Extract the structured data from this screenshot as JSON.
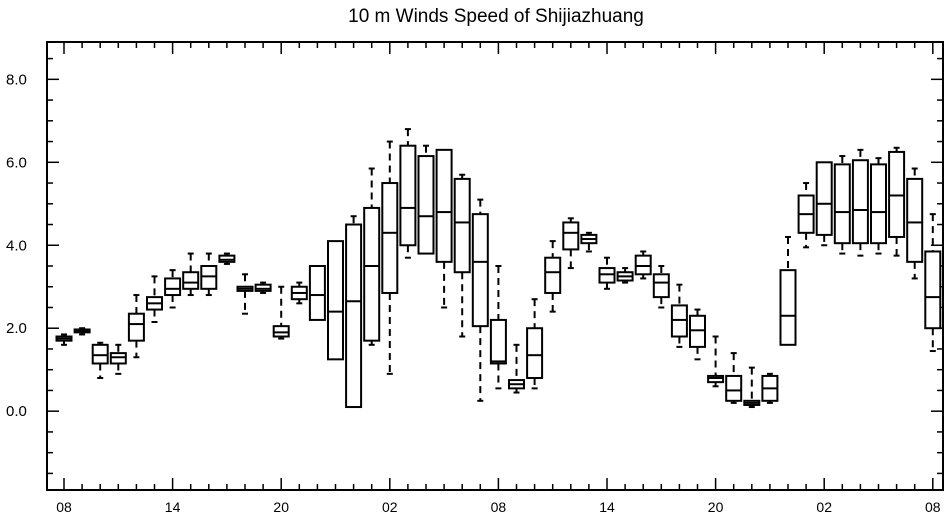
{
  "chart_data": {
    "type": "box",
    "title": "10 m Winds Speed of Shijiazhuang",
    "xlabel": "",
    "ylabel": "",
    "ylim": [
      -1.9,
      8.9
    ],
    "yticks_major": [
      0.0,
      2.0,
      4.0,
      6.0,
      8.0
    ],
    "ytick_labels": [
      "0.0",
      "2.0",
      "4.0",
      "6.0",
      "8.0"
    ],
    "yticks_minor_step": 0.5,
    "x_tick_labels": [
      "08",
      "14",
      "20",
      "02",
      "08",
      "14",
      "20",
      "02",
      "08"
    ],
    "x_tick_positions": [
      0,
      6,
      12,
      18,
      24,
      30,
      36,
      42,
      48
    ],
    "grid": false,
    "boxes": [
      {
        "x": 0,
        "whisker_low": 1.6,
        "q1": 1.7,
        "median": 1.75,
        "q3": 1.8,
        "whisker_high": 1.85
      },
      {
        "x": 1,
        "whisker_low": 1.85,
        "q1": 1.9,
        "median": 1.93,
        "q3": 1.97,
        "whisker_high": 2.0
      },
      {
        "x": 2,
        "whisker_low": 0.8,
        "q1": 1.15,
        "median": 1.35,
        "q3": 1.6,
        "whisker_high": 1.65
      },
      {
        "x": 3,
        "whisker_low": 0.9,
        "q1": 1.15,
        "median": 1.3,
        "q3": 1.4,
        "whisker_high": 1.6
      },
      {
        "x": 4,
        "whisker_low": 1.3,
        "q1": 1.7,
        "median": 2.1,
        "q3": 2.35,
        "whisker_high": 2.8
      },
      {
        "x": 5,
        "whisker_low": 2.15,
        "q1": 2.45,
        "median": 2.6,
        "q3": 2.75,
        "whisker_high": 3.25
      },
      {
        "x": 6,
        "whisker_low": 2.5,
        "q1": 2.8,
        "median": 2.95,
        "q3": 3.2,
        "whisker_high": 3.4
      },
      {
        "x": 7,
        "whisker_low": 2.8,
        "q1": 2.95,
        "median": 3.1,
        "q3": 3.35,
        "whisker_high": 3.8
      },
      {
        "x": 8,
        "whisker_low": 2.8,
        "q1": 2.95,
        "median": 3.25,
        "q3": 3.5,
        "whisker_high": 3.8
      },
      {
        "x": 9,
        "whisker_low": 3.55,
        "q1": 3.6,
        "median": 3.65,
        "q3": 3.75,
        "whisker_high": 3.8
      },
      {
        "x": 10,
        "whisker_low": 2.35,
        "q1": 2.9,
        "median": 2.95,
        "q3": 3.0,
        "whisker_high": 3.3
      },
      {
        "x": 11,
        "whisker_low": 2.85,
        "q1": 2.9,
        "median": 2.95,
        "q3": 3.05,
        "whisker_high": 3.1
      },
      {
        "x": 12,
        "whisker_low": 1.75,
        "q1": 1.8,
        "median": 1.9,
        "q3": 2.05,
        "whisker_high": 3.0
      },
      {
        "x": 13,
        "whisker_low": 2.6,
        "q1": 2.7,
        "median": 2.85,
        "q3": 3.0,
        "whisker_high": 3.1
      },
      {
        "x": 14,
        "whisker_low": 2.2,
        "q1": 2.2,
        "median": 2.8,
        "q3": 3.5,
        "whisker_high": 3.5
      },
      {
        "x": 15,
        "whisker_low": 1.25,
        "q1": 1.25,
        "median": 2.4,
        "q3": 4.1,
        "whisker_high": 4.1
      },
      {
        "x": 16,
        "whisker_low": 0.1,
        "q1": 0.1,
        "median": 2.65,
        "q3": 4.5,
        "whisker_high": 4.7
      },
      {
        "x": 17,
        "whisker_low": 1.6,
        "q1": 1.7,
        "median": 3.5,
        "q3": 4.9,
        "whisker_high": 5.85
      },
      {
        "x": 18,
        "whisker_low": 0.9,
        "q1": 2.85,
        "median": 4.3,
        "q3": 5.5,
        "whisker_high": 6.5
      },
      {
        "x": 19,
        "whisker_low": 3.7,
        "q1": 4.0,
        "median": 4.9,
        "q3": 6.4,
        "whisker_high": 6.8
      },
      {
        "x": 20,
        "whisker_low": 3.8,
        "q1": 3.8,
        "median": 4.7,
        "q3": 6.15,
        "whisker_high": 6.4
      },
      {
        "x": 21,
        "whisker_low": 2.5,
        "q1": 3.6,
        "median": 4.8,
        "q3": 6.3,
        "whisker_high": 6.3
      },
      {
        "x": 22,
        "whisker_low": 1.8,
        "q1": 3.35,
        "median": 4.55,
        "q3": 5.6,
        "whisker_high": 5.7
      },
      {
        "x": 23,
        "whisker_low": 0.25,
        "q1": 2.05,
        "median": 3.6,
        "q3": 4.75,
        "whisker_high": 5.1
      },
      {
        "x": 24,
        "whisker_low": 0.55,
        "q1": 1.15,
        "median": 1.2,
        "q3": 2.2,
        "whisker_high": 3.5
      },
      {
        "x": 25,
        "whisker_low": 0.45,
        "q1": 0.55,
        "median": 0.65,
        "q3": 0.75,
        "whisker_high": 1.6
      },
      {
        "x": 26,
        "whisker_low": 0.55,
        "q1": 0.8,
        "median": 1.35,
        "q3": 2.0,
        "whisker_high": 2.7
      },
      {
        "x": 27,
        "whisker_low": 2.4,
        "q1": 2.85,
        "median": 3.35,
        "q3": 3.7,
        "whisker_high": 4.1
      },
      {
        "x": 28,
        "whisker_low": 3.45,
        "q1": 3.9,
        "median": 4.3,
        "q3": 4.55,
        "whisker_high": 4.65
      },
      {
        "x": 29,
        "whisker_low": 3.85,
        "q1": 4.05,
        "median": 4.15,
        "q3": 4.25,
        "whisker_high": 4.3
      },
      {
        "x": 30,
        "whisker_low": 2.95,
        "q1": 3.1,
        "median": 3.3,
        "q3": 3.45,
        "whisker_high": 3.7
      },
      {
        "x": 31,
        "whisker_low": 3.1,
        "q1": 3.15,
        "median": 3.25,
        "q3": 3.35,
        "whisker_high": 3.45
      },
      {
        "x": 32,
        "whisker_low": 3.2,
        "q1": 3.3,
        "median": 3.5,
        "q3": 3.75,
        "whisker_high": 3.85
      },
      {
        "x": 33,
        "whisker_low": 2.5,
        "q1": 2.75,
        "median": 3.1,
        "q3": 3.3,
        "whisker_high": 3.5
      },
      {
        "x": 34,
        "whisker_low": 1.55,
        "q1": 1.8,
        "median": 2.2,
        "q3": 2.55,
        "whisker_high": 3.05
      },
      {
        "x": 35,
        "whisker_low": 1.25,
        "q1": 1.55,
        "median": 1.95,
        "q3": 2.3,
        "whisker_high": 2.45
      },
      {
        "x": 36,
        "whisker_low": 0.6,
        "q1": 0.7,
        "median": 0.8,
        "q3": 0.85,
        "whisker_high": 1.8
      },
      {
        "x": 37,
        "whisker_low": 0.2,
        "q1": 0.25,
        "median": 0.5,
        "q3": 0.85,
        "whisker_high": 1.4
      },
      {
        "x": 38,
        "whisker_low": 0.1,
        "q1": 0.15,
        "median": 0.2,
        "q3": 0.25,
        "whisker_high": 1.05
      },
      {
        "x": 39,
        "whisker_low": 0.2,
        "q1": 0.25,
        "median": 0.55,
        "q3": 0.85,
        "whisker_high": 0.9
      },
      {
        "x": 40,
        "whisker_low": 1.6,
        "q1": 1.6,
        "median": 2.3,
        "q3": 3.4,
        "whisker_high": 4.2
      },
      {
        "x": 41,
        "whisker_low": 3.95,
        "q1": 4.3,
        "median": 4.75,
        "q3": 5.2,
        "whisker_high": 5.5
      },
      {
        "x": 42,
        "whisker_low": 4.0,
        "q1": 4.25,
        "median": 5.0,
        "q3": 6.0,
        "whisker_high": 6.0
      },
      {
        "x": 43,
        "whisker_low": 3.8,
        "q1": 4.05,
        "median": 4.8,
        "q3": 5.95,
        "whisker_high": 6.15
      },
      {
        "x": 44,
        "whisker_low": 3.75,
        "q1": 4.05,
        "median": 4.85,
        "q3": 6.05,
        "whisker_high": 6.3
      },
      {
        "x": 45,
        "whisker_low": 3.8,
        "q1": 4.05,
        "median": 4.8,
        "q3": 5.95,
        "whisker_high": 6.1
      },
      {
        "x": 46,
        "whisker_low": 3.75,
        "q1": 4.2,
        "median": 5.2,
        "q3": 6.25,
        "whisker_high": 6.35
      },
      {
        "x": 47,
        "whisker_low": 3.2,
        "q1": 3.6,
        "median": 4.55,
        "q3": 5.6,
        "whisker_high": 5.85
      },
      {
        "x": 48,
        "whisker_low": 1.45,
        "q1": 2.0,
        "median": 2.75,
        "q3": 3.85,
        "whisker_high": 4.75
      }
    ]
  }
}
